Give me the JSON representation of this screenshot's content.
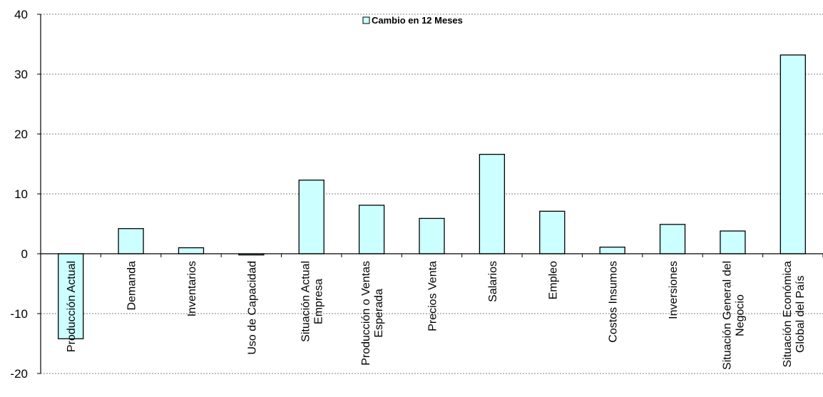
{
  "chart_data": {
    "type": "bar",
    "categories": [
      "Producción Actual",
      "Demanda",
      "Inventarios",
      "Uso de Capacidad",
      "Situación Actual\nEmpresa",
      "Producción o Ventas\nEsperada",
      "Precios Venta",
      "Salarios",
      "Empleo",
      "Costos Insumos",
      "Inversiones",
      "Situación General del\nNegocio",
      "Situación Económica\nGlobal del País"
    ],
    "series": [
      {
        "name": "Cambio en 12 Meses",
        "values": [
          -14.2,
          4.2,
          1.0,
          -0.2,
          12.3,
          8.1,
          5.9,
          16.6,
          7.1,
          1.1,
          4.9,
          3.8,
          33.2
        ]
      }
    ],
    "ylim": [
      -20,
      40
    ],
    "yticks": [
      "-20",
      "-10",
      "0",
      "10",
      "20",
      "30",
      "40"
    ],
    "grid": true,
    "legend_position": "top-center",
    "colors": {
      "bar_fill": "#ccffff",
      "bar_stroke": "#000000",
      "grid": "#808080"
    }
  }
}
